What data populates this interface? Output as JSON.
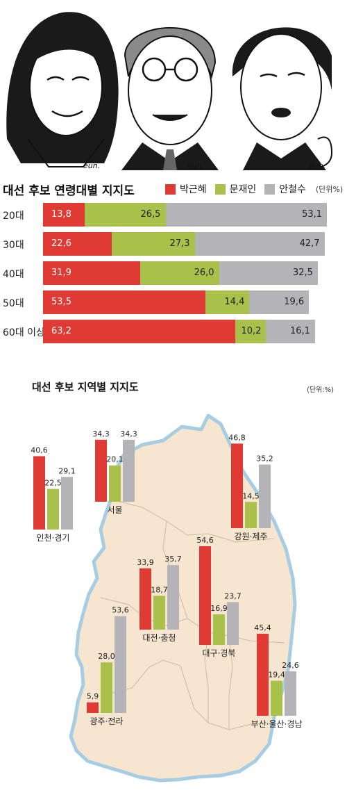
{
  "colors": {
    "park": "#e03a34",
    "moon": "#a9c14b",
    "ahn": "#b4b4b8",
    "map_fill": "#f6e6d0",
    "map_stroke": "#a7cde3"
  },
  "portraits": {
    "signatures": [
      "eun.",
      "eun.",
      "eun."
    ]
  },
  "age_chart": {
    "title": "대선 후보 연령대별 지지도",
    "unit": "(단위%)",
    "legend": [
      {
        "name": "박근혜",
        "color": "#e03a34"
      },
      {
        "name": "문재인",
        "color": "#a9c14b"
      },
      {
        "name": "안철수",
        "color": "#b4b4b8"
      }
    ]
  },
  "map_chart": {
    "title": "대선 후보 지역별 지지도",
    "unit": "(단위:%)"
  },
  "chart_data": [
    {
      "type": "bar",
      "stacked": true,
      "orientation": "horizontal",
      "title": "대선 후보 연령대별 지지도",
      "unit": "(단위%)",
      "categories": [
        "20대",
        "30대",
        "40대",
        "50대",
        "60대 이상"
      ],
      "series": [
        {
          "name": "박근혜",
          "values": [
            13.8,
            22.6,
            31.9,
            53.5,
            63.2
          ]
        },
        {
          "name": "문재인",
          "values": [
            26.5,
            27.3,
            26.0,
            14.4,
            10.2
          ]
        },
        {
          "name": "안철수",
          "values": [
            53.1,
            42.7,
            32.5,
            19.6,
            16.1
          ]
        }
      ],
      "value_labels": [
        [
          "13,8",
          "22,6",
          "31,9",
          "53,5",
          "63,2"
        ],
        [
          "26,5",
          "27,3",
          "26,0",
          "14,4",
          "10,2"
        ],
        [
          "53,1",
          "42,7",
          "32,5",
          "19,6",
          "16,1"
        ]
      ],
      "legend_placement": "top-right"
    },
    {
      "type": "bar",
      "title": "대선 후보 지역별 지지도",
      "unit": "(단위:%)",
      "categories": [
        "인천·경기",
        "서울",
        "강원·제주",
        "대전·충청",
        "대구·경북",
        "광주·전라",
        "부산·울산·경남"
      ],
      "series": [
        {
          "name": "박근혜",
          "values": [
            40.6,
            34.3,
            46.8,
            33.9,
            54.6,
            5.9,
            45.4
          ]
        },
        {
          "name": "문재인",
          "values": [
            22.5,
            20.1,
            14.5,
            18.7,
            16.9,
            28.0,
            19.4
          ]
        },
        {
          "name": "안철수",
          "values": [
            29.1,
            34.3,
            35.2,
            35.7,
            23.7,
            53.6,
            24.6
          ]
        }
      ],
      "value_labels": [
        [
          "40,6",
          "34,3",
          "46,8",
          "33,9",
          "54,6",
          "5,9",
          "45,4"
        ],
        [
          "22,5",
          "20,1",
          "14,5",
          "18,7",
          "16,9",
          "28,0",
          "19,4"
        ],
        [
          "29,1",
          "34,3",
          "35,2",
          "35,7",
          "23,7",
          "53,6",
          "24,6"
        ]
      ]
    }
  ]
}
